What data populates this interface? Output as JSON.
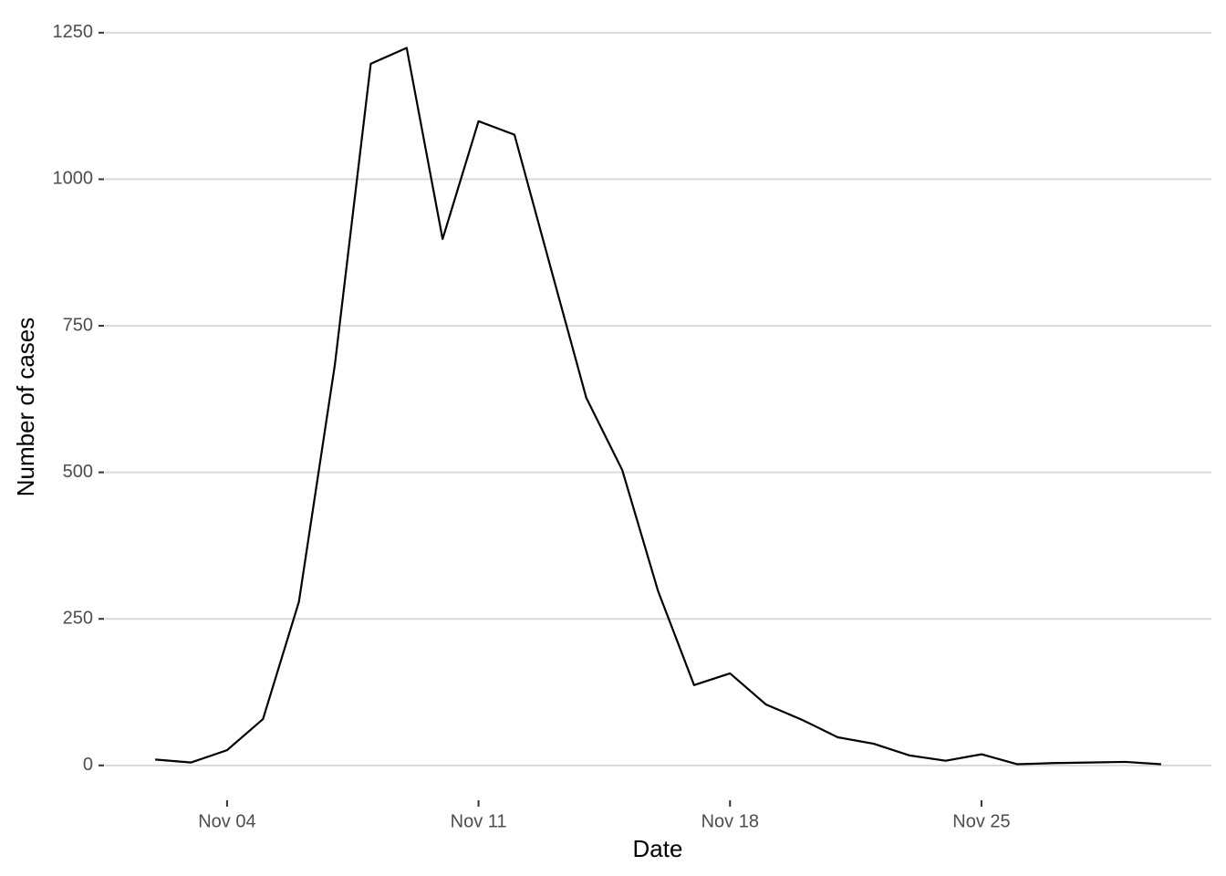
{
  "chart_data": {
    "type": "line",
    "x_label": "Date",
    "y_label": "Number of cases",
    "x": [
      2,
      3,
      4,
      5,
      6,
      7,
      8,
      9,
      10,
      11,
      12,
      13,
      14,
      15,
      16,
      17,
      18,
      19,
      20,
      21,
      22,
      23,
      24,
      25,
      26,
      27,
      28,
      29,
      30
    ],
    "values": [
      10,
      5,
      26,
      79,
      279,
      683,
      1197,
      1224,
      898,
      1099,
      1076,
      851,
      627,
      504,
      297,
      137,
      157,
      104,
      78,
      48,
      37,
      17,
      8,
      19,
      2,
      4,
      5,
      6,
      2
    ],
    "color": "#000000",
    "xlim": [
      0.6,
      31.4
    ],
    "xticks": [
      {
        "value": 4,
        "label": "Nov 04"
      },
      {
        "value": 11,
        "label": "Nov 11"
      },
      {
        "value": 18,
        "label": "Nov 18"
      },
      {
        "value": 25,
        "label": "Nov 25"
      }
    ],
    "ylim": [
      -61,
      1284
    ],
    "yticks": [
      0,
      250,
      500,
      750,
      1000,
      1250
    ],
    "grid": true
  }
}
